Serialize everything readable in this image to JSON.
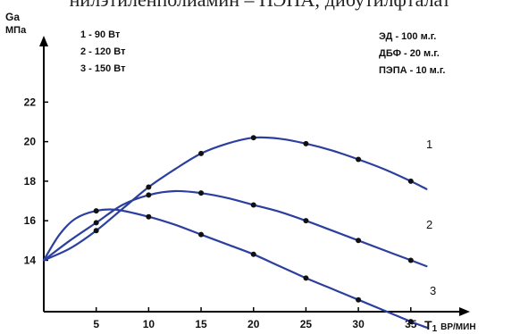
{
  "top_text": "нилэтиленполиамин – ПЭПА; дибутилфталат",
  "legend_power": [
    "1 - 90 Вт",
    "2 - 120 Вт",
    "3 - 150 Вт"
  ],
  "legend_composition": [
    "ЭД - 100 м.г.",
    "ДБФ - 20 м.г.",
    "ПЭПА - 10 м.г."
  ],
  "chart_data": {
    "type": "line",
    "ylabel_line1": "Ga",
    "ylabel_line2": "МПа",
    "xlabel_prefix": "T",
    "xlabel_sub": "1",
    "xlabel_suffix": "ВР/МИН",
    "x_ticks": [
      5,
      10,
      15,
      20,
      25,
      30,
      35
    ],
    "y_ticks": [
      14,
      16,
      18,
      20,
      22
    ],
    "xlim": [
      0,
      38
    ],
    "ylim": [
      11.4,
      24.5
    ],
    "axis_color": "#000000",
    "line_color": "#2b3f9e",
    "series": [
      {
        "name": "1",
        "points": [
          [
            0,
            14.0
          ],
          [
            5,
            15.5
          ],
          [
            10,
            17.7
          ],
          [
            15,
            19.4
          ],
          [
            20,
            20.2
          ],
          [
            25,
            19.9
          ],
          [
            30,
            19.1
          ],
          [
            35,
            18.0
          ]
        ],
        "curve": [
          [
            0,
            14.0
          ],
          [
            2.5,
            14.6
          ],
          [
            5,
            15.5
          ],
          [
            7.5,
            16.6
          ],
          [
            10,
            17.7
          ],
          [
            12.5,
            18.6
          ],
          [
            15,
            19.4
          ],
          [
            17.5,
            19.9
          ],
          [
            20,
            20.2
          ],
          [
            22.5,
            20.15
          ],
          [
            25,
            19.9
          ],
          [
            27.5,
            19.55
          ],
          [
            30,
            19.1
          ],
          [
            32.5,
            18.6
          ],
          [
            35,
            18.0
          ],
          [
            36.5,
            17.6
          ]
        ],
        "end_label": "1"
      },
      {
        "name": "2",
        "points": [
          [
            0,
            14.0
          ],
          [
            5,
            15.9
          ],
          [
            10,
            17.3
          ],
          [
            15,
            17.4
          ],
          [
            20,
            16.8
          ],
          [
            25,
            16.0
          ],
          [
            30,
            15.0
          ],
          [
            35,
            14.0
          ]
        ],
        "curve": [
          [
            0,
            14.0
          ],
          [
            2.5,
            15.0
          ],
          [
            5,
            15.9
          ],
          [
            7.5,
            16.8
          ],
          [
            10,
            17.3
          ],
          [
            12.5,
            17.5
          ],
          [
            15,
            17.4
          ],
          [
            17.5,
            17.15
          ],
          [
            20,
            16.8
          ],
          [
            22.5,
            16.45
          ],
          [
            25,
            16.0
          ],
          [
            27.5,
            15.5
          ],
          [
            30,
            15.0
          ],
          [
            32.5,
            14.5
          ],
          [
            35,
            14.0
          ],
          [
            36.5,
            13.7
          ]
        ],
        "end_label": "2"
      },
      {
        "name": "3",
        "points": [
          [
            0,
            14.0
          ],
          [
            5,
            16.5
          ],
          [
            10,
            16.2
          ],
          [
            15,
            15.3
          ],
          [
            20,
            14.3
          ],
          [
            25,
            13.1
          ],
          [
            30,
            12.0
          ],
          [
            35,
            10.9
          ]
        ],
        "curve": [
          [
            0,
            14.0
          ],
          [
            1.5,
            15.3
          ],
          [
            3,
            16.1
          ],
          [
            5,
            16.5
          ],
          [
            7,
            16.55
          ],
          [
            10,
            16.2
          ],
          [
            12.5,
            15.8
          ],
          [
            15,
            15.3
          ],
          [
            17.5,
            14.8
          ],
          [
            20,
            14.3
          ],
          [
            22.5,
            13.7
          ],
          [
            25,
            13.1
          ],
          [
            27.5,
            12.55
          ],
          [
            30,
            12.0
          ],
          [
            32.5,
            11.45
          ],
          [
            35,
            10.9
          ],
          [
            36.5,
            10.6
          ]
        ],
        "end_label": "3"
      }
    ]
  }
}
